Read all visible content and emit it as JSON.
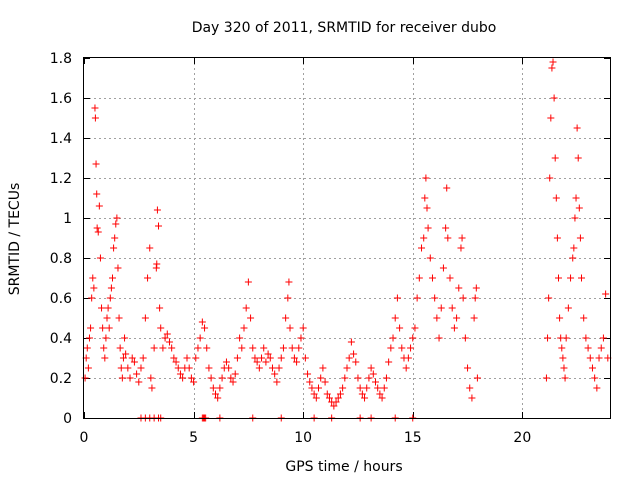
{
  "chart_data": {
    "type": "scatter",
    "title": "Day 320 of 2011, SRMTID for receiver dubo",
    "xlabel": "GPS time / hours",
    "ylabel": "SRMTID / TECUs",
    "xlim": [
      0,
      24
    ],
    "ylim": [
      0,
      1.8
    ],
    "xticks": [
      0,
      5,
      10,
      15,
      20
    ],
    "xtick_labels": [
      "0",
      "5",
      "10",
      "15",
      "20"
    ],
    "yticks": [
      0,
      0.2,
      0.4,
      0.6,
      0.8,
      1,
      1.2,
      1.4,
      1.6,
      1.8
    ],
    "ytick_labels": [
      "0",
      "0.2",
      "0.4",
      "0.6",
      "0.8",
      "1",
      "1.2",
      "1.4",
      "1.6",
      "1.8"
    ],
    "grid": true,
    "marker": "plus",
    "color": "#ff0000",
    "series": [
      {
        "name": "SRMTID",
        "points": [
          [
            0.05,
            0.2
          ],
          [
            0.1,
            0.3
          ],
          [
            0.15,
            0.35
          ],
          [
            0.2,
            0.25
          ],
          [
            0.25,
            0.4
          ],
          [
            0.3,
            0.45
          ],
          [
            0.35,
            0.6
          ],
          [
            0.4,
            0.7
          ],
          [
            0.45,
            0.65
          ],
          [
            0.5,
            1.55
          ],
          [
            0.52,
            1.5
          ],
          [
            0.55,
            1.27
          ],
          [
            0.58,
            1.12
          ],
          [
            0.6,
            0.95
          ],
          [
            0.65,
            0.93
          ],
          [
            0.7,
            1.06
          ],
          [
            0.75,
            0.8
          ],
          [
            0.8,
            0.55
          ],
          [
            0.85,
            0.45
          ],
          [
            0.9,
            0.35
          ],
          [
            0.95,
            0.3
          ],
          [
            1.0,
            0.4
          ],
          [
            1.05,
            0.5
          ],
          [
            1.1,
            0.55
          ],
          [
            1.15,
            0.45
          ],
          [
            1.2,
            0.6
          ],
          [
            1.25,
            0.65
          ],
          [
            1.3,
            0.7
          ],
          [
            1.35,
            0.85
          ],
          [
            1.4,
            0.9
          ],
          [
            1.45,
            0.97
          ],
          [
            1.5,
            1.0
          ],
          [
            1.55,
            0.75
          ],
          [
            1.6,
            0.5
          ],
          [
            1.65,
            0.35
          ],
          [
            1.7,
            0.25
          ],
          [
            1.75,
            0.2
          ],
          [
            1.8,
            0.3
          ],
          [
            1.85,
            0.4
          ],
          [
            1.9,
            0.32
          ],
          [
            2.0,
            0.25
          ],
          [
            2.1,
            0.2
          ],
          [
            2.2,
            0.3
          ],
          [
            2.3,
            0.28
          ],
          [
            2.4,
            0.22
          ],
          [
            2.5,
            0.18
          ],
          [
            2.6,
            0.25
          ],
          [
            2.7,
            0.3
          ],
          [
            2.8,
            0.5
          ],
          [
            2.9,
            0.7
          ],
          [
            3.0,
            0.85
          ],
          [
            3.05,
            0.2
          ],
          [
            3.1,
            0.15
          ],
          [
            3.2,
            0.35
          ],
          [
            3.3,
            0.75
          ],
          [
            3.32,
            0.77
          ],
          [
            3.35,
            1.04
          ],
          [
            3.4,
            0.96
          ],
          [
            3.45,
            0.55
          ],
          [
            3.5,
            0.45
          ],
          [
            3.6,
            0.35
          ],
          [
            3.7,
            0.4
          ],
          [
            3.8,
            0.42
          ],
          [
            3.9,
            0.38
          ],
          [
            4.0,
            0.35
          ],
          [
            4.1,
            0.3
          ],
          [
            4.2,
            0.28
          ],
          [
            4.3,
            0.25
          ],
          [
            4.4,
            0.22
          ],
          [
            4.5,
            0.2
          ],
          [
            4.6,
            0.25
          ],
          [
            4.7,
            0.3
          ],
          [
            4.8,
            0.25
          ],
          [
            4.9,
            0.2
          ],
          [
            5.0,
            0.18
          ],
          [
            5.1,
            0.3
          ],
          [
            5.2,
            0.35
          ],
          [
            5.3,
            0.4
          ],
          [
            5.4,
            0.48
          ],
          [
            5.5,
            0.45
          ],
          [
            5.6,
            0.35
          ],
          [
            5.7,
            0.25
          ],
          [
            5.8,
            0.2
          ],
          [
            5.9,
            0.15
          ],
          [
            6.0,
            0.12
          ],
          [
            6.1,
            0.1
          ],
          [
            6.2,
            0.15
          ],
          [
            6.3,
            0.2
          ],
          [
            6.4,
            0.25
          ],
          [
            6.5,
            0.28
          ],
          [
            6.6,
            0.25
          ],
          [
            6.7,
            0.2
          ],
          [
            6.8,
            0.18
          ],
          [
            6.9,
            0.22
          ],
          [
            7.0,
            0.3
          ],
          [
            7.1,
            0.4
          ],
          [
            7.2,
            0.35
          ],
          [
            7.3,
            0.45
          ],
          [
            7.4,
            0.55
          ],
          [
            7.5,
            0.68
          ],
          [
            7.6,
            0.5
          ],
          [
            7.7,
            0.35
          ],
          [
            7.8,
            0.3
          ],
          [
            7.9,
            0.28
          ],
          [
            8.0,
            0.25
          ],
          [
            8.1,
            0.3
          ],
          [
            8.2,
            0.35
          ],
          [
            8.3,
            0.28
          ],
          [
            8.4,
            0.32
          ],
          [
            8.5,
            0.3
          ],
          [
            8.6,
            0.25
          ],
          [
            8.7,
            0.22
          ],
          [
            8.8,
            0.18
          ],
          [
            8.9,
            0.25
          ],
          [
            9.0,
            0.3
          ],
          [
            9.1,
            0.35
          ],
          [
            9.2,
            0.5
          ],
          [
            9.3,
            0.6
          ],
          [
            9.35,
            0.68
          ],
          [
            9.4,
            0.45
          ],
          [
            9.5,
            0.35
          ],
          [
            9.6,
            0.3
          ],
          [
            9.7,
            0.28
          ],
          [
            9.8,
            0.35
          ],
          [
            9.9,
            0.4
          ],
          [
            10.0,
            0.45
          ],
          [
            10.1,
            0.3
          ],
          [
            10.2,
            0.22
          ],
          [
            10.3,
            0.18
          ],
          [
            10.4,
            0.15
          ],
          [
            10.5,
            0.12
          ],
          [
            10.6,
            0.1
          ],
          [
            10.7,
            0.15
          ],
          [
            10.8,
            0.2
          ],
          [
            10.9,
            0.25
          ],
          [
            11.0,
            0.18
          ],
          [
            11.1,
            0.12
          ],
          [
            11.2,
            0.1
          ],
          [
            11.3,
            0.08
          ],
          [
            11.4,
            0.06
          ],
          [
            11.5,
            0.08
          ],
          [
            11.6,
            0.1
          ],
          [
            11.7,
            0.12
          ],
          [
            11.8,
            0.15
          ],
          [
            11.9,
            0.2
          ],
          [
            12.0,
            0.25
          ],
          [
            12.1,
            0.3
          ],
          [
            12.2,
            0.38
          ],
          [
            12.3,
            0.32
          ],
          [
            12.4,
            0.28
          ],
          [
            12.5,
            0.2
          ],
          [
            12.6,
            0.15
          ],
          [
            12.7,
            0.12
          ],
          [
            12.8,
            0.1
          ],
          [
            12.9,
            0.15
          ],
          [
            13.0,
            0.2
          ],
          [
            13.1,
            0.25
          ],
          [
            13.2,
            0.22
          ],
          [
            13.3,
            0.18
          ],
          [
            13.4,
            0.15
          ],
          [
            13.5,
            0.12
          ],
          [
            13.6,
            0.1
          ],
          [
            13.7,
            0.15
          ],
          [
            13.8,
            0.2
          ],
          [
            13.9,
            0.28
          ],
          [
            14.0,
            0.35
          ],
          [
            14.1,
            0.4
          ],
          [
            14.2,
            0.5
          ],
          [
            14.3,
            0.6
          ],
          [
            14.4,
            0.45
          ],
          [
            14.5,
            0.35
          ],
          [
            14.6,
            0.3
          ],
          [
            14.7,
            0.25
          ],
          [
            14.8,
            0.3
          ],
          [
            14.9,
            0.35
          ],
          [
            15.0,
            0.4
          ],
          [
            15.1,
            0.45
          ],
          [
            15.2,
            0.6
          ],
          [
            15.3,
            0.7
          ],
          [
            15.4,
            0.85
          ],
          [
            15.5,
            0.9
          ],
          [
            15.55,
            1.1
          ],
          [
            15.6,
            1.2
          ],
          [
            15.65,
            1.05
          ],
          [
            15.7,
            0.95
          ],
          [
            15.8,
            0.8
          ],
          [
            15.9,
            0.7
          ],
          [
            16.0,
            0.6
          ],
          [
            16.1,
            0.5
          ],
          [
            16.2,
            0.4
          ],
          [
            16.3,
            0.55
          ],
          [
            16.4,
            0.75
          ],
          [
            16.5,
            0.95
          ],
          [
            16.55,
            1.15
          ],
          [
            16.6,
            0.9
          ],
          [
            16.7,
            0.7
          ],
          [
            16.8,
            0.55
          ],
          [
            16.9,
            0.45
          ],
          [
            17.0,
            0.5
          ],
          [
            17.1,
            0.65
          ],
          [
            17.2,
            0.85
          ],
          [
            17.25,
            0.9
          ],
          [
            17.3,
            0.6
          ],
          [
            17.4,
            0.4
          ],
          [
            17.5,
            0.25
          ],
          [
            17.6,
            0.15
          ],
          [
            17.7,
            0.1
          ],
          [
            17.8,
            0.5
          ],
          [
            17.85,
            0.6
          ],
          [
            17.9,
            0.65
          ],
          [
            17.95,
            0.2
          ],
          [
            21.1,
            0.2
          ],
          [
            21.15,
            0.4
          ],
          [
            21.2,
            0.6
          ],
          [
            21.25,
            1.2
          ],
          [
            21.3,
            1.5
          ],
          [
            21.35,
            1.75
          ],
          [
            21.4,
            1.78
          ],
          [
            21.45,
            1.6
          ],
          [
            21.5,
            1.3
          ],
          [
            21.55,
            1.1
          ],
          [
            21.6,
            0.9
          ],
          [
            21.65,
            0.7
          ],
          [
            21.7,
            0.5
          ],
          [
            21.75,
            0.4
          ],
          [
            21.8,
            0.35
          ],
          [
            21.85,
            0.3
          ],
          [
            21.9,
            0.25
          ],
          [
            21.95,
            0.2
          ],
          [
            22.0,
            0.4
          ],
          [
            22.1,
            0.55
          ],
          [
            22.2,
            0.7
          ],
          [
            22.3,
            0.8
          ],
          [
            22.35,
            0.85
          ],
          [
            22.4,
            1.0
          ],
          [
            22.45,
            1.1
          ],
          [
            22.5,
            1.45
          ],
          [
            22.55,
            1.3
          ],
          [
            22.6,
            1.05
          ],
          [
            22.65,
            0.9
          ],
          [
            22.7,
            0.7
          ],
          [
            22.8,
            0.5
          ],
          [
            22.9,
            0.4
          ],
          [
            23.0,
            0.35
          ],
          [
            23.1,
            0.3
          ],
          [
            23.2,
            0.25
          ],
          [
            23.3,
            0.2
          ],
          [
            23.4,
            0.15
          ],
          [
            23.5,
            0.3
          ],
          [
            23.6,
            0.35
          ],
          [
            23.7,
            0.4
          ],
          [
            23.8,
            0.62
          ],
          [
            23.9,
            0.3
          ]
        ]
      }
    ],
    "gap_marks_x": [
      2.6,
      2.8,
      3.0,
      3.2,
      3.4,
      3.5,
      5.4,
      5.45,
      5.5,
      5.55,
      6.2,
      7.7,
      9.0,
      10.5,
      11.3,
      12.6,
      13.1,
      14.2,
      15.0
    ]
  }
}
